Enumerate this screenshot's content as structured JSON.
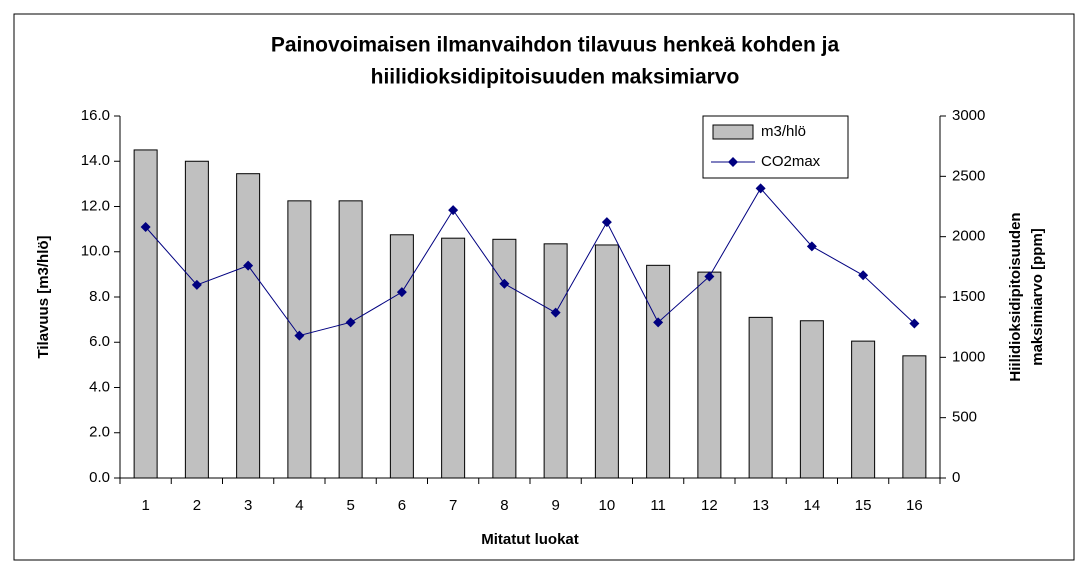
{
  "chart_data": {
    "type": "bar-line",
    "title": [
      "Painovoimaisen ilmanvaihdon tilavuus henkeä kohden ja",
      "hiilidioksidipitoisuuden maksimiarvo"
    ],
    "xlabel": "Mitatut luokat",
    "ylabel": "Tilavuus [m3/hlö]",
    "y2label": [
      "Hiilidioksidipitoisuuden",
      "maksimiarvo [ppm]"
    ],
    "categories": [
      "1",
      "2",
      "3",
      "4",
      "5",
      "6",
      "7",
      "8",
      "9",
      "10",
      "11",
      "12",
      "13",
      "14",
      "15",
      "16"
    ],
    "series": [
      {
        "name": "m3/hlö",
        "type": "bar",
        "color": "#c0c0c0",
        "values": [
          14.5,
          14.0,
          13.45,
          12.25,
          12.25,
          10.75,
          10.6,
          10.55,
          10.35,
          10.3,
          9.4,
          9.1,
          7.1,
          6.95,
          6.05,
          5.4
        ]
      },
      {
        "name": "CO2max",
        "type": "line",
        "axis": "y2",
        "color": "#000080",
        "values": [
          2080,
          1600,
          1760,
          1180,
          1290,
          1540,
          2220,
          1610,
          1370,
          2120,
          1290,
          1670,
          2400,
          1920,
          1680,
          1280
        ]
      }
    ],
    "ylim": [
      0,
      16
    ],
    "yticks": [
      {
        "value": 0,
        "label": "0.0"
      },
      {
        "value": 2,
        "label": "2.0"
      },
      {
        "value": 4,
        "label": "4.0"
      },
      {
        "value": 6,
        "label": "6.0"
      },
      {
        "value": 8,
        "label": "8.0"
      },
      {
        "value": 10,
        "label": "10.0"
      },
      {
        "value": 12,
        "label": "12.0"
      },
      {
        "value": 14,
        "label": "14.0"
      },
      {
        "value": 16,
        "label": "16.0"
      }
    ],
    "y2lim": [
      0,
      3000
    ],
    "y2ticks": [
      0,
      500,
      1000,
      1500,
      2000,
      2500,
      3000
    ],
    "legend": "top-right"
  }
}
